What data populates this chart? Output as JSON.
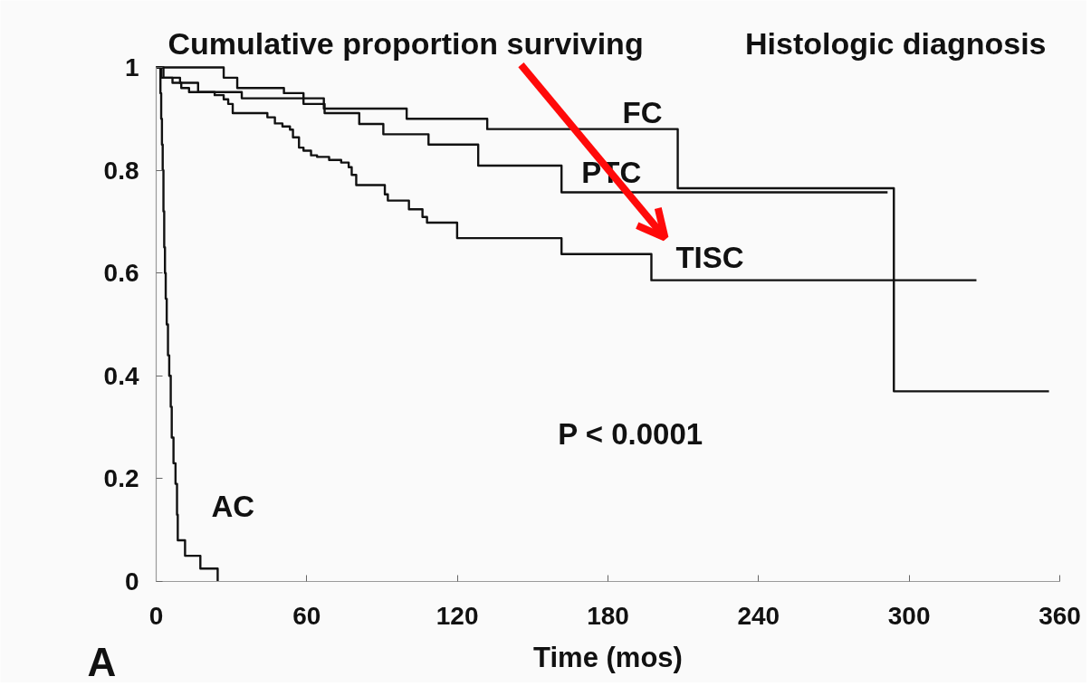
{
  "chart_data": {
    "type": "step",
    "title": "Histologic diagnosis",
    "ylabel": "Cumulative proportion surviving",
    "xlabel": "Time (mos)",
    "xlim": [
      0,
      360
    ],
    "xticks": [
      0,
      60,
      120,
      180,
      240,
      300,
      360
    ],
    "ylim": [
      0,
      1
    ],
    "yticks": [
      0,
      0.2,
      0.4,
      0.6,
      0.8,
      1
    ],
    "series": [
      {
        "name": "FC",
        "color": "#111111",
        "x": [
          0,
          26.9,
          32.3,
          50.9,
          58.7,
          66.8,
          99.8,
          131.9,
          207.8,
          293.9,
          355.7
        ],
        "values": [
          1,
          0.98,
          0.96,
          0.95,
          0.94,
          0.92,
          0.9,
          0.88,
          0.765,
          0.37,
          0.37
        ]
      },
      {
        "name": "PTC",
        "color": "#111111",
        "x": [
          0,
          2,
          9.5,
          16.7,
          34.1,
          58.7,
          67.1,
          80.9,
          90.5,
          108.5,
          128.3,
          161.5,
          291.4
        ],
        "values": [
          1,
          0.98,
          0.97,
          0.952,
          0.94,
          0.929,
          0.911,
          0.89,
          0.87,
          0.85,
          0.809,
          0.757,
          0.757
        ]
      },
      {
        "name": "TISC",
        "color": "#111111",
        "x": [
          0,
          2.9,
          6.5,
          10,
          13.1,
          23.3,
          26.9,
          28.7,
          30.5,
          44.3,
          47.3,
          50.3,
          53.3,
          54.5,
          56.9,
          58.7,
          61.7,
          64.1,
          68.9,
          73.7,
          76.7,
          77.9,
          79.7,
          91.1,
          92.3,
          100.7,
          106.1,
          107.9,
          119.9,
          161.5,
          197.3,
          326.8
        ],
        "values": [
          1,
          0.98,
          0.97,
          0.96,
          0.952,
          0.946,
          0.938,
          0.929,
          0.911,
          0.903,
          0.891,
          0.885,
          0.879,
          0.864,
          0.844,
          0.838,
          0.829,
          0.826,
          0.82,
          0.815,
          0.806,
          0.791,
          0.771,
          0.753,
          0.741,
          0.724,
          0.709,
          0.698,
          0.668,
          0.637,
          0.586,
          0.586
        ]
      },
      {
        "name": "AC",
        "color": "#111111",
        "x": [
          0,
          1.7,
          2.0,
          2.3,
          2.6,
          2.9,
          3.2,
          3.5,
          3.8,
          4.2,
          4.7,
          5.2,
          5.8,
          6.2,
          6.9,
          7.7,
          8.3,
          8.6,
          11.5,
          17.6,
          24.5
        ],
        "values": [
          1,
          0.95,
          0.9,
          0.85,
          0.8,
          0.72,
          0.65,
          0.6,
          0.55,
          0.5,
          0.44,
          0.4,
          0.34,
          0.28,
          0.23,
          0.19,
          0.13,
          0.08,
          0.05,
          0.025,
          0
        ]
      }
    ],
    "annotations": [
      "P < 0.0001",
      "A"
    ]
  }
}
